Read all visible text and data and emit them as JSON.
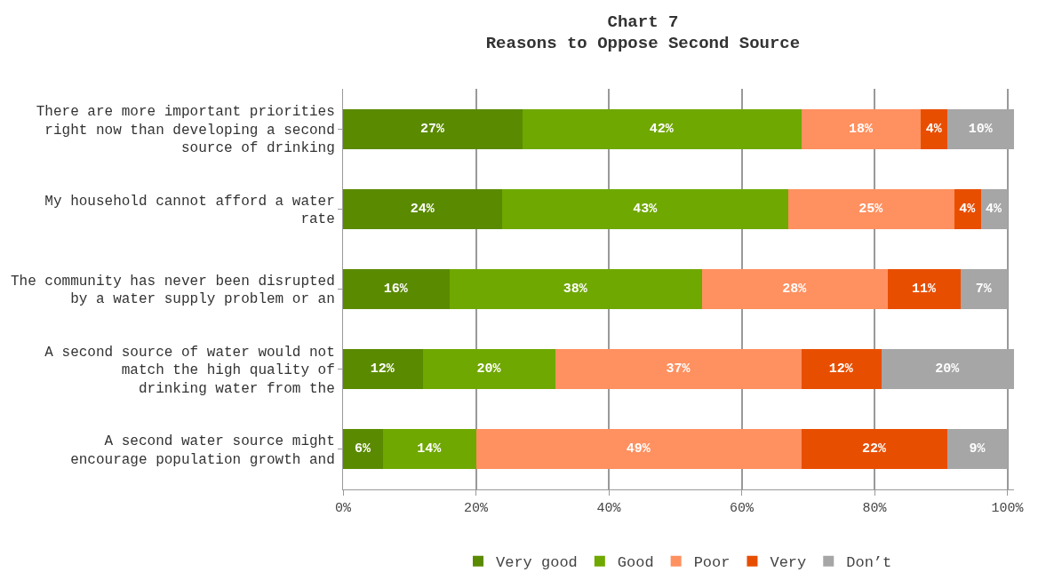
{
  "chart_data": {
    "type": "bar",
    "orientation": "horizontal",
    "stacked": true,
    "title": "Chart 7",
    "subtitle": "Reasons to Oppose Second Source",
    "categories": [
      "There are more important priorities\nright now than developing a second\nsource of drinking",
      "My household cannot afford a water\nrate",
      "The community has never been disrupted\nby a water supply problem or an",
      "A second source of water would not\nmatch the high quality of\ndrinking water from the",
      "A second water source might\nencourage population growth and"
    ],
    "series": [
      {
        "name": "Very good",
        "color": "#5a8a00",
        "values": [
          27,
          24,
          16,
          12,
          6
        ],
        "value_labels": [
          "27%",
          "24%",
          "16%",
          "12%",
          "6%"
        ]
      },
      {
        "name": "Good",
        "color": "#6fa800",
        "values": [
          42,
          43,
          38,
          20,
          14
        ],
        "value_labels": [
          "42%",
          "43%",
          "38%",
          "20%",
          "14%"
        ]
      },
      {
        "name": "Poor",
        "color": "#ff9060",
        "values": [
          18,
          25,
          28,
          37,
          49
        ],
        "value_labels": [
          "18%",
          "25%",
          "28%",
          "37%",
          "49%"
        ]
      },
      {
        "name": "Very",
        "color": "#e84e00",
        "values": [
          4,
          4,
          11,
          12,
          22
        ],
        "value_labels": [
          "4%",
          "4%",
          "11%",
          "12%",
          "22%"
        ]
      },
      {
        "name": "Don’t",
        "color": "#a6a6a6",
        "values": [
          10,
          4,
          7,
          20,
          9
        ],
        "value_labels": [
          "10%",
          "4%",
          "7%",
          "20%",
          "9%"
        ]
      }
    ],
    "xlim": [
      0,
      101
    ],
    "xticks": [
      {
        "value": 0,
        "label": "0%"
      },
      {
        "value": 20,
        "label": "20%"
      },
      {
        "value": 40,
        "label": "40%"
      },
      {
        "value": 60,
        "label": "60%"
      },
      {
        "value": 80,
        "label": "80%"
      },
      {
        "value": 100,
        "label": "100%"
      }
    ],
    "grid": "x",
    "legend": "bottom"
  }
}
